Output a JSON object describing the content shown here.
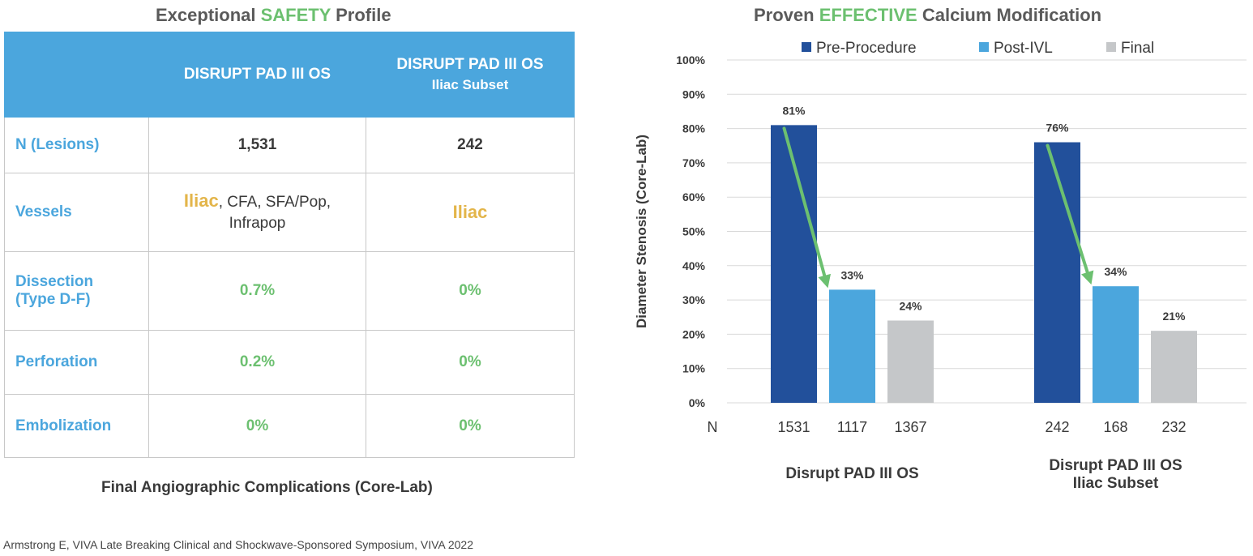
{
  "left": {
    "title_pre": "Exceptional ",
    "title_hl": "SAFETY",
    "title_post": " Profile",
    "table": {
      "col1": "DISRUPT PAD III OS",
      "col2_line1": "DISRUPT PAD III OS",
      "col2_line2": "Iliac Subset",
      "rows": {
        "n": {
          "label": "N (Lesions)",
          "v1": "1,531",
          "v2": "242"
        },
        "vessels": {
          "label": "Vessels",
          "v1_highlight": "Iliac",
          "v1_line1_rest": ", CFA, SFA/Pop,",
          "v1_line2": "Infrapop",
          "v2": "Iliac"
        },
        "dissection": {
          "label_line1": "Dissection",
          "label_line2": "(Type D-F)",
          "v1": "0.7%",
          "v2": "0%"
        },
        "perforation": {
          "label": "Perforation",
          "v1": "0.2%",
          "v2": "0%"
        },
        "embolization": {
          "label": "Embolization",
          "v1": "0%",
          "v2": "0%"
        }
      }
    },
    "caption": "Final Angiographic Complications (Core-Lab)"
  },
  "right": {
    "title_pre": "Proven ",
    "title_hl": "EFFECTIVE",
    "title_post": " Calcium Modification"
  },
  "citation": "Armstrong E, VIVA Late Breaking Clinical and Shockwave-Sponsored Symposium, VIVA 2022",
  "colors": {
    "accent_green": "#6cc070",
    "header_blue": "#4ba6dd",
    "iliac_gold": "#e3b54a",
    "pre": "#22509b",
    "post": "#4ba6dd",
    "final": "#c5c7c9"
  },
  "chart_data": {
    "type": "bar",
    "title": "Proven EFFECTIVE Calcium Modification",
    "ylabel": "Diameter Stenosis (Core-Lab)",
    "ylim": [
      0,
      100
    ],
    "yticks": [
      0,
      10,
      20,
      30,
      40,
      50,
      60,
      70,
      80,
      90,
      100
    ],
    "ytick_suffix": "%",
    "grid": true,
    "legend_position": "top",
    "n_label": "N",
    "groups": [
      {
        "name_line1": "Disrupt PAD III OS",
        "name_line2": ""
      },
      {
        "name_line1": "Disrupt PAD III OS",
        "name_line2": "Iliac Subset"
      }
    ],
    "series": [
      {
        "name": "Pre-Procedure",
        "values": [
          81,
          76
        ],
        "labels": [
          "81%",
          "76%"
        ],
        "n": [
          "1531",
          "242"
        ],
        "color": "#22509b"
      },
      {
        "name": "Post-IVL",
        "values": [
          33,
          34
        ],
        "labels": [
          "33%",
          "34%"
        ],
        "n": [
          "1117",
          "168"
        ],
        "color": "#4ba6dd"
      },
      {
        "name": "Final",
        "values": [
          24,
          21
        ],
        "labels": [
          "24%",
          "21%"
        ],
        "n": [
          "1367",
          "232"
        ],
        "color": "#c5c7c9"
      }
    ],
    "annotations": [
      {
        "type": "arrow",
        "from_series": "Pre-Procedure",
        "to_series": "Post-IVL",
        "group": 0,
        "color": "#6cc070"
      },
      {
        "type": "arrow",
        "from_series": "Pre-Procedure",
        "to_series": "Post-IVL",
        "group": 1,
        "color": "#6cc070"
      }
    ]
  }
}
